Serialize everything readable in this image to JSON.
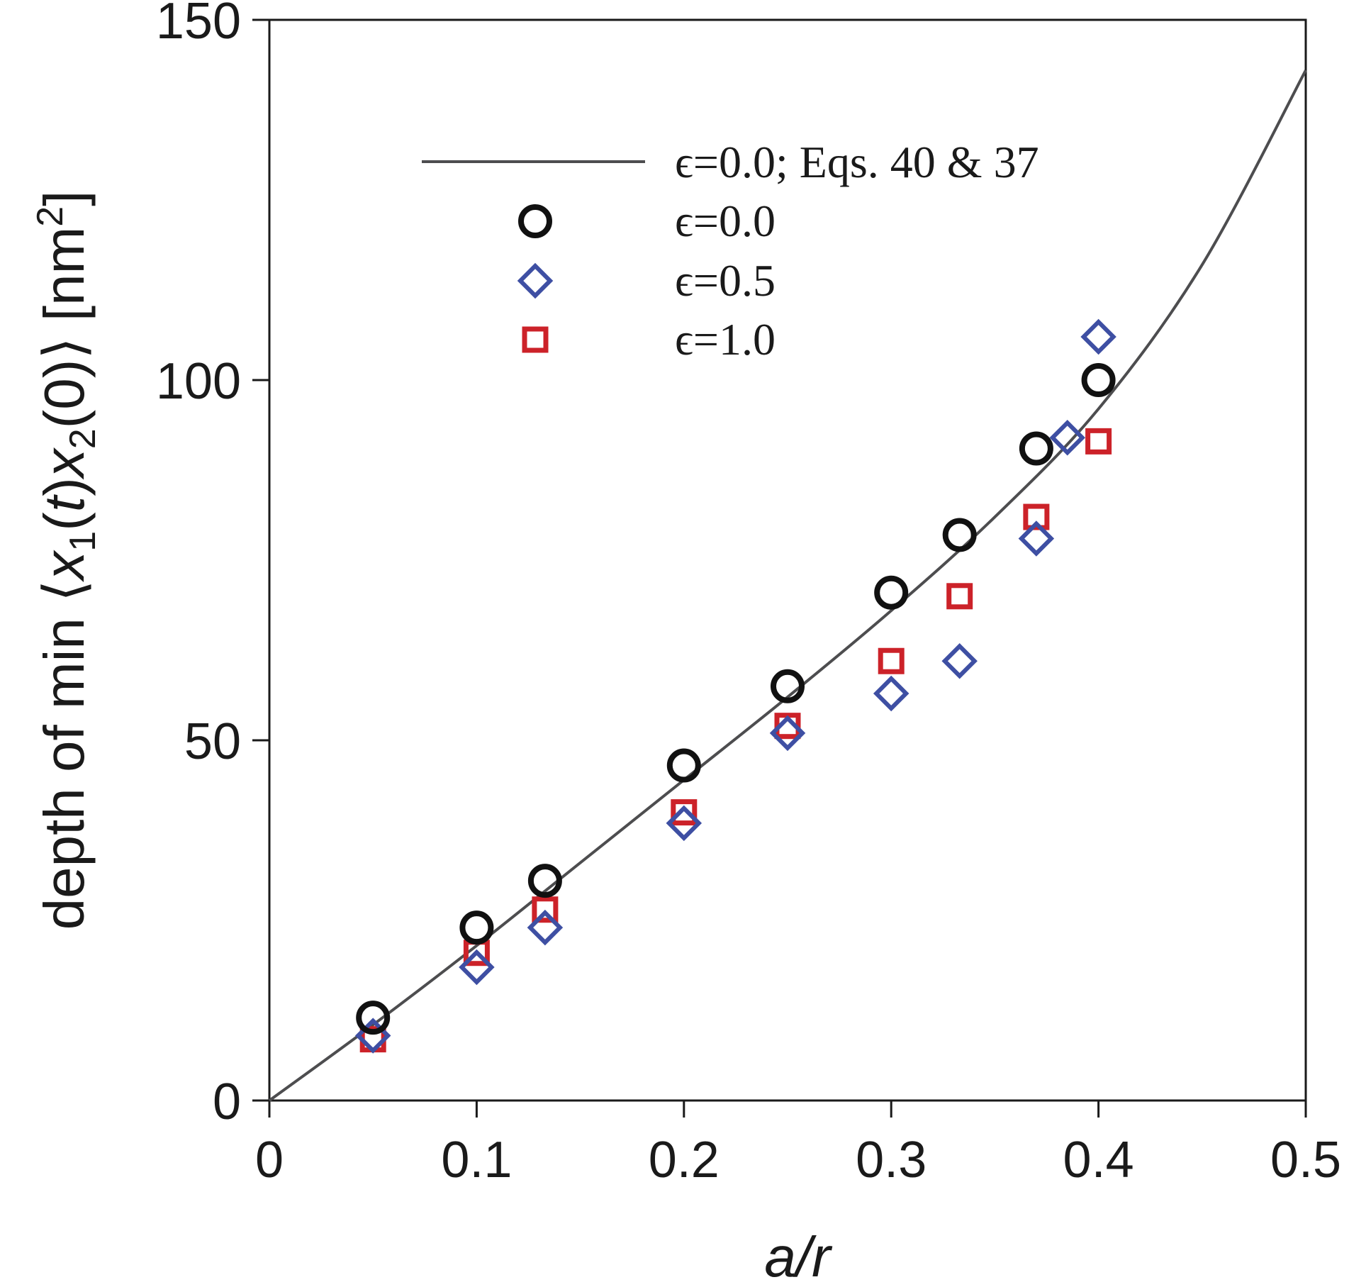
{
  "chart_data": {
    "type": "scatter",
    "title": "",
    "xlabel": "a/r",
    "ylabel": {
      "prefix": "depth of min ",
      "sub1": "1",
      "t": "t",
      "sub2": "2",
      "unit": "nm",
      "exp": "2"
    },
    "xlim": [
      0,
      0.5
    ],
    "ylim": [
      0,
      150
    ],
    "xticks": [
      0,
      0.1,
      0.2,
      0.3,
      0.4,
      0.5
    ],
    "xtick_labels": [
      "0",
      "0.1",
      "0.2",
      "0.3",
      "0.4",
      "0.5"
    ],
    "yticks": [
      0,
      50,
      100,
      150
    ],
    "ytick_labels": [
      "0",
      "50",
      "100",
      "150"
    ],
    "legend_position": "top-center",
    "line": {
      "name": "ϵ=0.0; Eqs. 40 & 37",
      "color": "#4d4d4f",
      "x": [
        0,
        0.05,
        0.1,
        0.15,
        0.2,
        0.25,
        0.3,
        0.35,
        0.4,
        0.45,
        0.5
      ],
      "y": [
        0,
        10.5,
        21.5,
        33,
        44.5,
        56,
        68,
        81,
        96,
        116,
        143
      ]
    },
    "series": [
      {
        "name": "ϵ=0.0",
        "marker": "circle",
        "color": "#111111",
        "x": [
          0.05,
          0.1,
          0.133,
          0.2,
          0.25,
          0.3,
          0.333,
          0.37,
          0.4
        ],
        "y": [
          11.5,
          24,
          30.5,
          46.5,
          57.5,
          70.5,
          78.5,
          90.5,
          100
        ]
      },
      {
        "name": "ϵ=0.5",
        "marker": "diamond",
        "color": "#3e4fa3",
        "x": [
          0.05,
          0.1,
          0.133,
          0.2,
          0.25,
          0.3,
          0.333,
          0.37,
          0.385,
          0.4
        ],
        "y": [
          9,
          18.5,
          24,
          38.5,
          51,
          56.5,
          61,
          78,
          92,
          106
        ]
      },
      {
        "name": "ϵ=1.0",
        "marker": "square",
        "color": "#cc2229",
        "x": [
          0.05,
          0.1,
          0.133,
          0.2,
          0.25,
          0.3,
          0.333,
          0.37,
          0.4
        ],
        "y": [
          8.5,
          20.5,
          26.5,
          40,
          52,
          61,
          70,
          81,
          91.5
        ]
      }
    ]
  }
}
